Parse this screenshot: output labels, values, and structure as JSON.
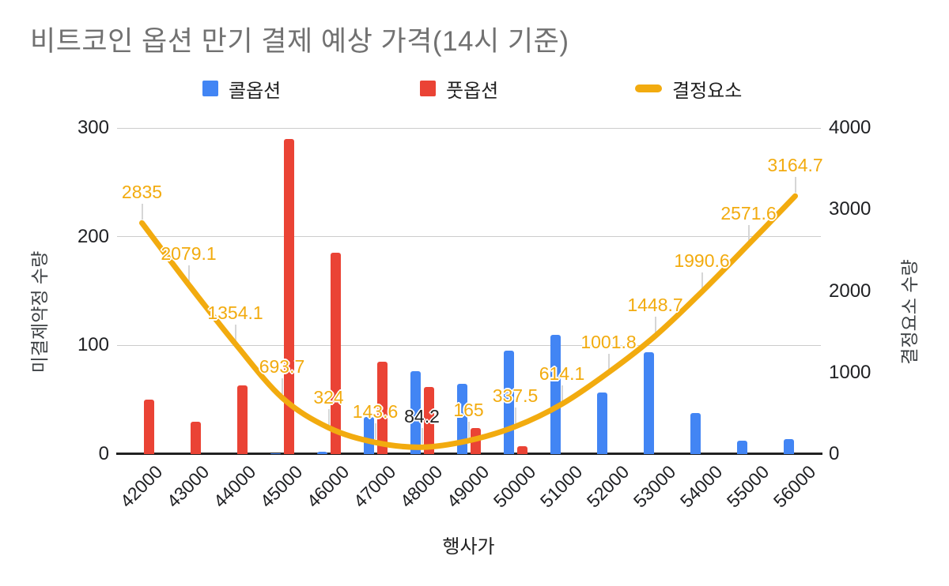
{
  "title": "비트코인 옵션 만기 결제 예상 가격(14시 기준)",
  "legend": [
    {
      "label": "콜옵션",
      "color": "#4285F4",
      "marker": "square"
    },
    {
      "label": "풋옵션",
      "color": "#EA4335",
      "marker": "square"
    },
    {
      "label": "결정요소",
      "color": "#F2AB0F",
      "marker": "line"
    }
  ],
  "axes": {
    "left": {
      "title": "미결제약정 수량",
      "ticks": [
        0,
        100,
        200,
        300
      ],
      "max": 300
    },
    "right": {
      "title": "결정요소 수량",
      "ticks": [
        0,
        1000,
        2000,
        3000,
        4000
      ],
      "max": 4000
    },
    "x": {
      "title": "행사가"
    }
  },
  "chart_data": {
    "type": "combo-bar-line",
    "title": "비트코인 옵션 만기 결제 예상 가격(14시 기준)",
    "xlabel": "행사가",
    "ylabel_left": "미결제약정 수량",
    "ylabel_right": "결정요소 수량",
    "ylim_left": [
      0,
      300
    ],
    "ylim_right": [
      0,
      4000
    ],
    "grid": "horizontal",
    "legend_position": "top",
    "categories": [
      42000,
      43000,
      44000,
      45000,
      46000,
      47000,
      48000,
      49000,
      50000,
      51000,
      52000,
      53000,
      54000,
      55000,
      56000
    ],
    "series": [
      {
        "name": "콜옵션",
        "type": "bar",
        "axis": "left",
        "color": "#4285F4",
        "values": [
          0,
          0,
          0,
          1,
          2,
          34,
          76,
          65,
          95,
          110,
          57,
          94,
          38,
          12,
          14
        ]
      },
      {
        "name": "풋옵션",
        "type": "bar",
        "axis": "left",
        "color": "#EA4335",
        "values": [
          50,
          30,
          63,
          290,
          185,
          85,
          62,
          24,
          7,
          0,
          0,
          0,
          0,
          0,
          0
        ]
      },
      {
        "name": "결정요소",
        "type": "line",
        "axis": "right",
        "color": "#F2AB0F",
        "values": [
          2835,
          2079.1,
          1354.1,
          693.7,
          324,
          143.6,
          84.2,
          165,
          337.5,
          614.1,
          1001.8,
          1448.7,
          1990.6,
          2571.6,
          3164.7
        ],
        "annotations": [
          {
            "text": "2835"
          },
          {
            "text": "2079.1"
          },
          {
            "text": "1354.1"
          },
          {
            "text": "693.7"
          },
          {
            "text": "324"
          },
          {
            "text": "143.6"
          },
          {
            "text": "84.2",
            "color": "#212121"
          },
          {
            "text": "165"
          },
          {
            "text": "337.5"
          },
          {
            "text": "614.1"
          },
          {
            "text": "1001.8"
          },
          {
            "text": "1448.7"
          },
          {
            "text": "1990.6"
          },
          {
            "text": "2571.6"
          },
          {
            "text": "3164.7"
          }
        ]
      }
    ]
  }
}
